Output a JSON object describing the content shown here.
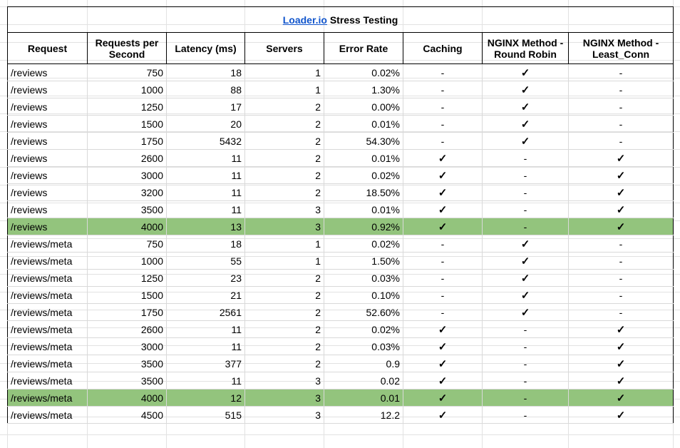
{
  "title": {
    "link": "Loader.io",
    "rest": " Stress Testing"
  },
  "headers": {
    "request": "Request",
    "rps": "Requests per Second",
    "latency": "Latency (ms)",
    "servers": "Servers",
    "error_rate": "Error Rate",
    "caching": "Caching",
    "round_robin": "NGINX Method - Round Robin",
    "least_conn": "NGINX Method - Least_Conn"
  },
  "check_glyph": "✓",
  "dash_glyph": "-",
  "highlight_color": "#93c47d",
  "rows": [
    {
      "request": "/reviews",
      "rps": "750",
      "latency": "18",
      "servers": "1",
      "error_rate": "0.02%",
      "caching": "-",
      "round_robin": "✓",
      "least_conn": "-"
    },
    {
      "request": "/reviews",
      "rps": "1000",
      "latency": "88",
      "servers": "1",
      "error_rate": "1.30%",
      "caching": "-",
      "round_robin": "✓",
      "least_conn": "-"
    },
    {
      "request": "/reviews",
      "rps": "1250",
      "latency": "17",
      "servers": "2",
      "error_rate": "0.00%",
      "caching": "-",
      "round_robin": "✓",
      "least_conn": "-"
    },
    {
      "request": "/reviews",
      "rps": "1500",
      "latency": "20",
      "servers": "2",
      "error_rate": "0.01%",
      "caching": "-",
      "round_robin": "✓",
      "least_conn": "-"
    },
    {
      "request": "/reviews",
      "rps": "1750",
      "latency": "5432",
      "servers": "2",
      "error_rate": "54.30%",
      "caching": "-",
      "round_robin": "✓",
      "least_conn": "-"
    },
    {
      "request": "/reviews",
      "rps": "2600",
      "latency": "11",
      "servers": "2",
      "error_rate": "0.01%",
      "caching": "✓",
      "round_robin": "-",
      "least_conn": "✓"
    },
    {
      "request": "/reviews",
      "rps": "3000",
      "latency": "11",
      "servers": "2",
      "error_rate": "0.02%",
      "caching": "✓",
      "round_robin": "-",
      "least_conn": "✓"
    },
    {
      "request": "/reviews",
      "rps": "3200",
      "latency": "11",
      "servers": "2",
      "error_rate": "18.50%",
      "caching": "✓",
      "round_robin": "-",
      "least_conn": "✓"
    },
    {
      "request": "/reviews",
      "rps": "3500",
      "latency": "11",
      "servers": "3",
      "error_rate": "0.01%",
      "caching": "✓",
      "round_robin": "-",
      "least_conn": "✓"
    },
    {
      "request": "/reviews",
      "rps": "4000",
      "latency": "13",
      "servers": "3",
      "error_rate": "0.92%",
      "caching": "✓",
      "round_robin": "-",
      "least_conn": "✓",
      "highlight": true
    },
    {
      "request": "/reviews/meta",
      "rps": "750",
      "latency": "18",
      "servers": "1",
      "error_rate": "0.02%",
      "caching": "-",
      "round_robin": "✓",
      "least_conn": "-"
    },
    {
      "request": "/reviews/meta",
      "rps": "1000",
      "latency": "55",
      "servers": "1",
      "error_rate": "1.50%",
      "caching": "-",
      "round_robin": "✓",
      "least_conn": "-"
    },
    {
      "request": "/reviews/meta",
      "rps": "1250",
      "latency": "23",
      "servers": "2",
      "error_rate": "0.03%",
      "caching": "-",
      "round_robin": "✓",
      "least_conn": "-"
    },
    {
      "request": "/reviews/meta",
      "rps": "1500",
      "latency": "21",
      "servers": "2",
      "error_rate": "0.10%",
      "caching": "-",
      "round_robin": "✓",
      "least_conn": "-"
    },
    {
      "request": "/reviews/meta",
      "rps": "1750",
      "latency": "2561",
      "servers": "2",
      "error_rate": "52.60%",
      "caching": "-",
      "round_robin": "✓",
      "least_conn": "-"
    },
    {
      "request": "/reviews/meta",
      "rps": "2600",
      "latency": "11",
      "servers": "2",
      "error_rate": "0.02%",
      "caching": "✓",
      "round_robin": "-",
      "least_conn": "✓"
    },
    {
      "request": "/reviews/meta",
      "rps": "3000",
      "latency": "11",
      "servers": "2",
      "error_rate": "0.03%",
      "caching": "✓",
      "round_robin": "-",
      "least_conn": "✓"
    },
    {
      "request": "/reviews/meta",
      "rps": "3500",
      "latency": "377",
      "servers": "2",
      "error_rate": "0.9",
      "caching": "✓",
      "round_robin": "-",
      "least_conn": "✓"
    },
    {
      "request": "/reviews/meta",
      "rps": "3500",
      "latency": "11",
      "servers": "3",
      "error_rate": "0.02",
      "caching": "✓",
      "round_robin": "-",
      "least_conn": "✓"
    },
    {
      "request": "/reviews/meta",
      "rps": "4000",
      "latency": "12",
      "servers": "3",
      "error_rate": "0.01",
      "caching": "✓",
      "round_robin": "-",
      "least_conn": "✓",
      "highlight": true
    },
    {
      "request": "/reviews/meta",
      "rps": "4500",
      "latency": "515",
      "servers": "3",
      "error_rate": "12.2",
      "caching": "✓",
      "round_robin": "-",
      "least_conn": "✓"
    }
  ]
}
